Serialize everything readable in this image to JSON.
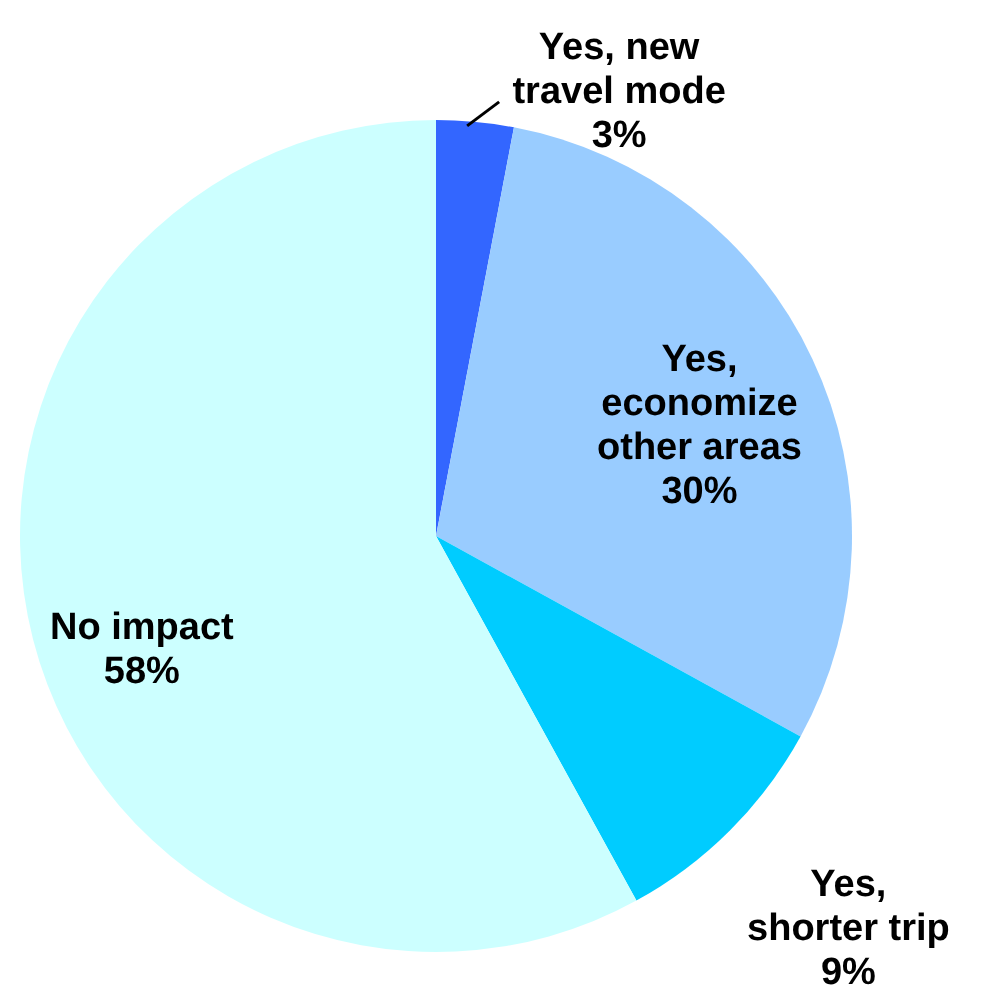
{
  "chart_data": {
    "type": "pie",
    "categories": [
      "Yes, new\ntravel mode",
      "Yes,\neconomize\nother areas",
      "Yes,\nshorter trip",
      "No impact"
    ],
    "values": [
      3,
      30,
      9,
      58
    ],
    "colors": [
      "#3366ff",
      "#99ccff",
      "#00ccff",
      "#ccffff"
    ],
    "value_labels": [
      "3%",
      "30%",
      "9%",
      "58%"
    ]
  }
}
